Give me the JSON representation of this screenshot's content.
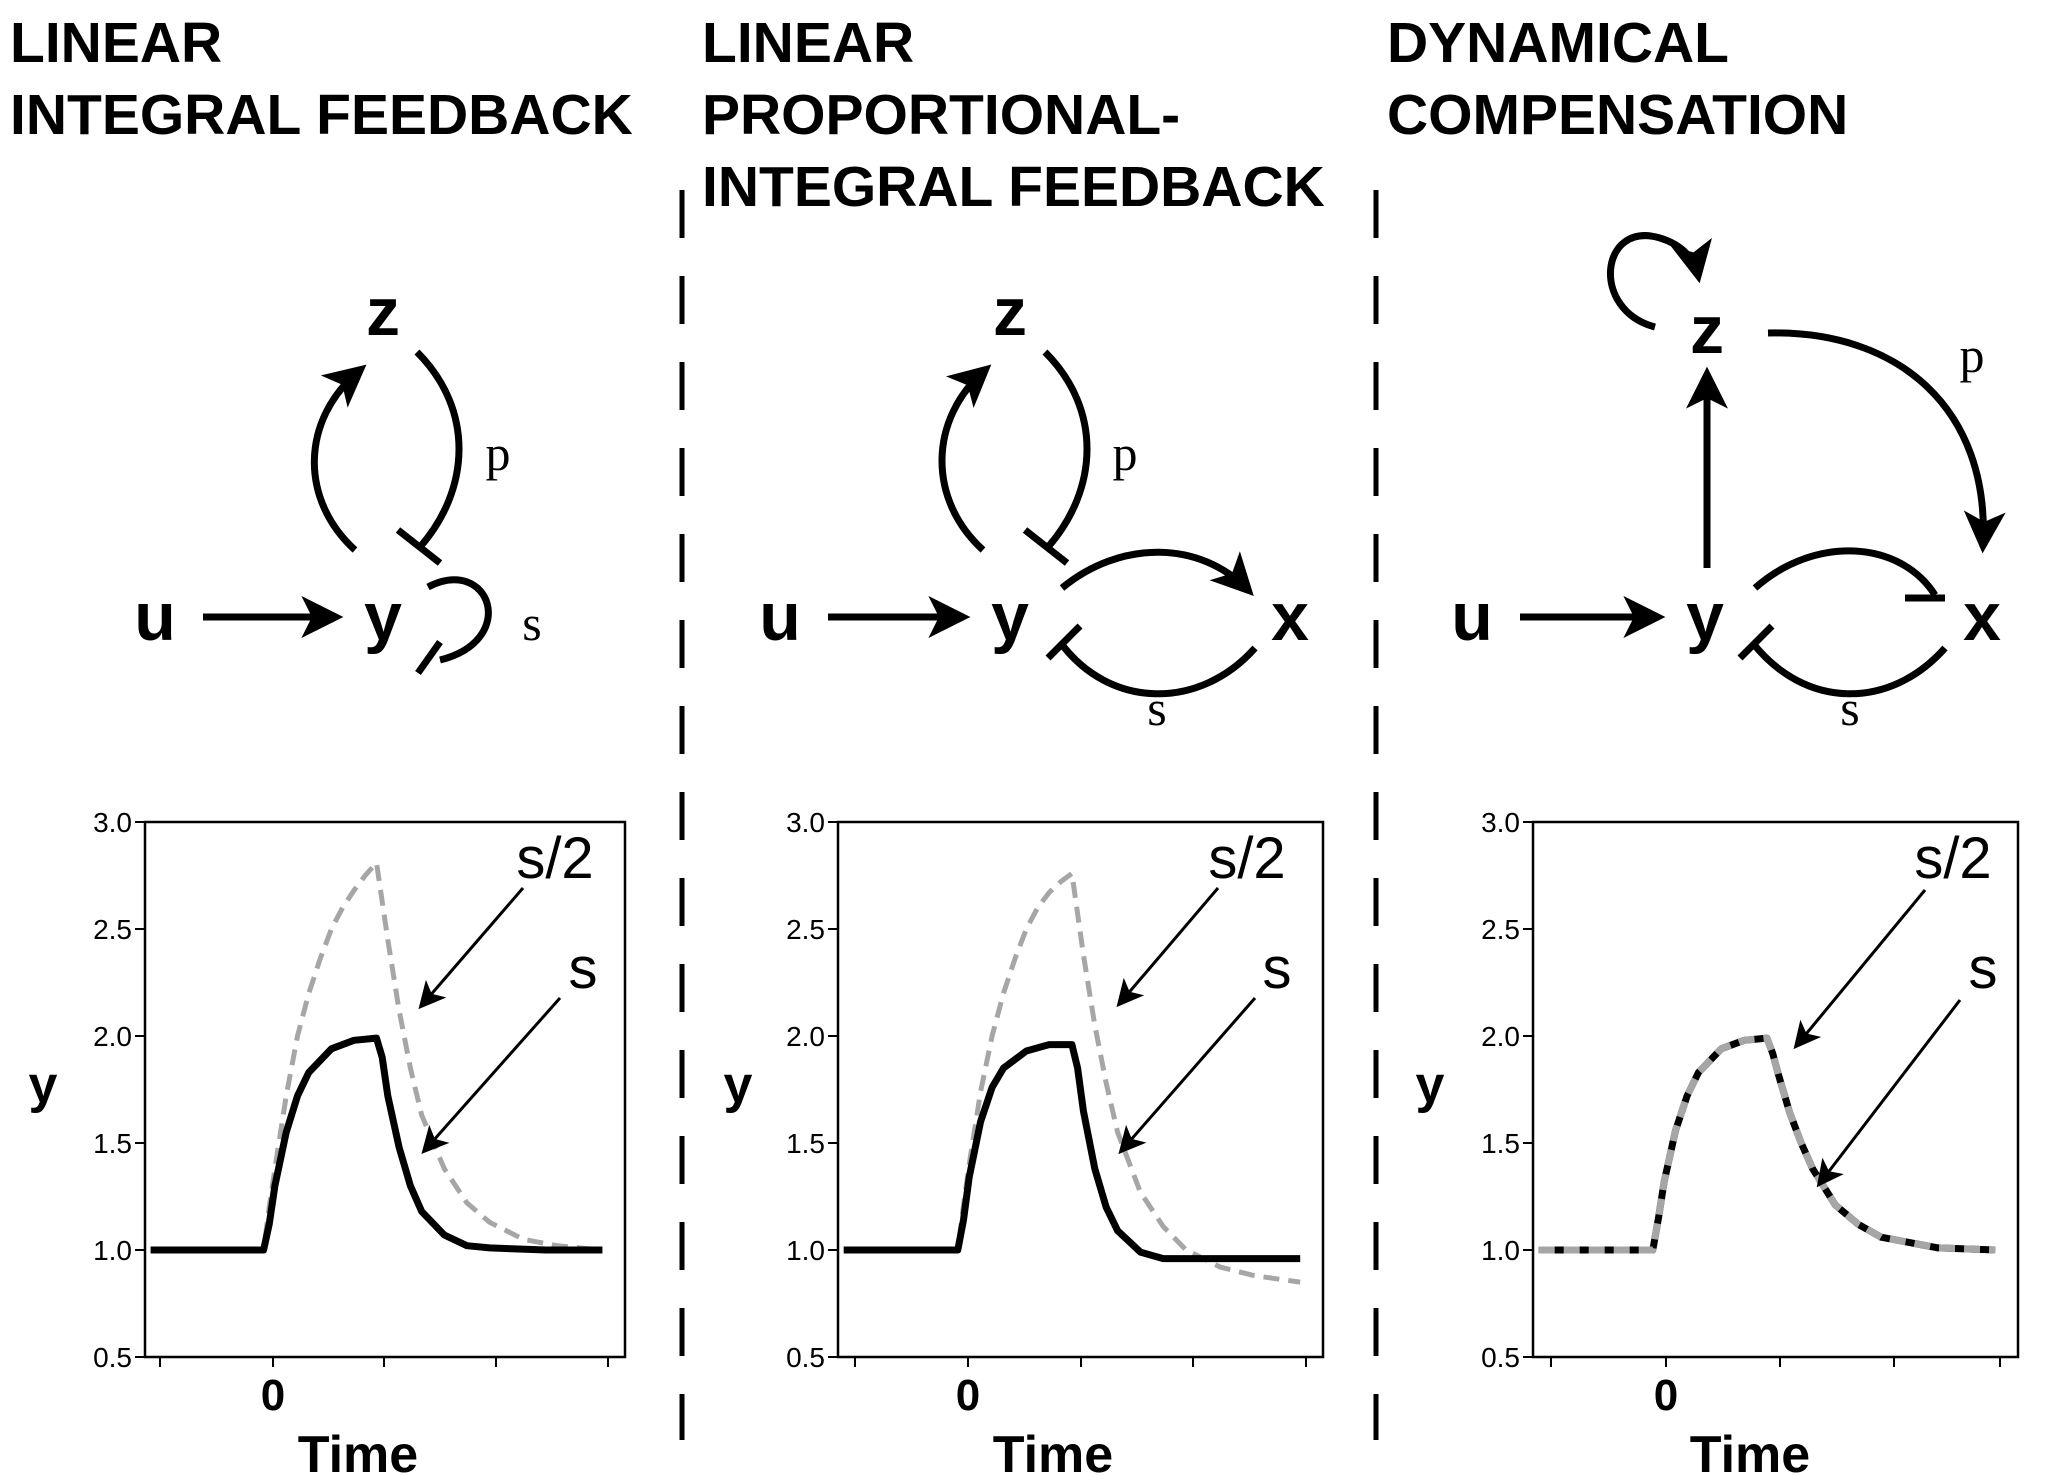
{
  "panels": [
    {
      "title_lines": [
        "LINEAR",
        "INTEGRAL FEEDBACK"
      ],
      "nodes": {
        "z": "z",
        "u": "u",
        "y": "y"
      },
      "edge_labels": {
        "p": "p",
        "s": "s"
      },
      "annotations": {
        "half": "s/2",
        "full": "s"
      }
    },
    {
      "title_lines": [
        "LINEAR",
        "PROPORTIONAL-",
        "INTEGRAL FEEDBACK"
      ],
      "nodes": {
        "z": "z",
        "u": "u",
        "y": "y",
        "x": "x"
      },
      "edge_labels": {
        "p": "p",
        "s": "s"
      },
      "annotations": {
        "half": "s/2",
        "full": "s"
      }
    },
    {
      "title_lines": [
        "DYNAMICAL",
        "COMPENSATION"
      ],
      "nodes": {
        "z": "z",
        "u": "u",
        "y": "y",
        "x": "x"
      },
      "edge_labels": {
        "p": "p",
        "s": "s"
      },
      "annotations": {
        "half": "s/2",
        "full": "s"
      }
    }
  ],
  "colors": {
    "solid": "#000000",
    "dashed": "#a6a6a6"
  },
  "chart_data": [
    {
      "type": "line",
      "xlabel": "Time",
      "ylabel": "y",
      "x_tick_labels": [
        "0"
      ],
      "y_tick_labels": [
        "0.5",
        "1.0",
        "1.5",
        "2.0",
        "2.5",
        "3.0"
      ],
      "ylim": [
        0.5,
        3.0
      ],
      "xlim": [
        -1.05,
        3.2
      ],
      "series": [
        {
          "name": "s",
          "style": "solid",
          "x": [
            -1.0,
            -0.5,
            0.0,
            0.05,
            0.1,
            0.2,
            0.3,
            0.4,
            0.6,
            0.8,
            1.0,
            1.05,
            1.1,
            1.2,
            1.3,
            1.4,
            1.6,
            1.8,
            2.0,
            2.5,
            3.0
          ],
          "values": [
            1.0,
            1.0,
            1.0,
            1.12,
            1.3,
            1.55,
            1.72,
            1.83,
            1.94,
            1.98,
            1.99,
            1.9,
            1.72,
            1.48,
            1.3,
            1.18,
            1.07,
            1.02,
            1.01,
            1.0,
            1.0
          ]
        },
        {
          "name": "s/2",
          "style": "dashed",
          "x": [
            -1.0,
            -0.5,
            0.0,
            0.05,
            0.1,
            0.2,
            0.3,
            0.4,
            0.5,
            0.6,
            0.7,
            0.8,
            0.9,
            1.0,
            1.1,
            1.2,
            1.3,
            1.4,
            1.6,
            1.8,
            2.0,
            2.3,
            2.6,
            3.0
          ],
          "values": [
            1.0,
            1.0,
            1.0,
            1.2,
            1.38,
            1.72,
            2.0,
            2.2,
            2.36,
            2.5,
            2.6,
            2.68,
            2.75,
            2.81,
            2.45,
            2.12,
            1.85,
            1.63,
            1.38,
            1.22,
            1.13,
            1.05,
            1.02,
            1.0
          ]
        }
      ]
    },
    {
      "type": "line",
      "xlabel": "Time",
      "ylabel": "y",
      "x_tick_labels": [
        "0"
      ],
      "y_tick_labels": [
        "0.5",
        "1.0",
        "1.5",
        "2.0",
        "2.5",
        "3.0"
      ],
      "ylim": [
        0.5,
        3.0
      ],
      "xlim": [
        -1.05,
        3.2
      ],
      "series": [
        {
          "name": "s",
          "style": "solid",
          "x": [
            -1.0,
            -0.5,
            0.0,
            0.05,
            0.1,
            0.2,
            0.3,
            0.4,
            0.6,
            0.8,
            1.0,
            1.05,
            1.1,
            1.2,
            1.3,
            1.4,
            1.6,
            1.8,
            2.0,
            2.5,
            3.0
          ],
          "values": [
            1.0,
            1.0,
            1.0,
            1.14,
            1.34,
            1.6,
            1.76,
            1.85,
            1.93,
            1.96,
            1.96,
            1.85,
            1.65,
            1.38,
            1.2,
            1.09,
            0.99,
            0.96,
            0.96,
            0.96,
            0.96
          ]
        },
        {
          "name": "s/2",
          "style": "dashed",
          "x": [
            -1.0,
            -0.5,
            0.0,
            0.05,
            0.1,
            0.2,
            0.3,
            0.4,
            0.5,
            0.6,
            0.7,
            0.8,
            0.9,
            1.0,
            1.1,
            1.2,
            1.3,
            1.4,
            1.6,
            1.8,
            2.0,
            2.3,
            2.6,
            3.0
          ],
          "values": [
            1.0,
            1.0,
            1.0,
            1.21,
            1.4,
            1.74,
            2.0,
            2.2,
            2.36,
            2.5,
            2.6,
            2.67,
            2.72,
            2.76,
            2.38,
            2.05,
            1.78,
            1.55,
            1.27,
            1.11,
            1.0,
            0.92,
            0.88,
            0.85
          ]
        }
      ]
    },
    {
      "type": "line",
      "xlabel": "Time",
      "ylabel": "y",
      "x_tick_labels": [
        "0"
      ],
      "y_tick_labels": [
        "0.5",
        "1.0",
        "1.5",
        "2.0",
        "2.5",
        "3.0"
      ],
      "ylim": [
        0.5,
        3.0
      ],
      "xlim": [
        -1.05,
        3.2
      ],
      "series": [
        {
          "name": "s",
          "style": "solid",
          "x": [
            -1.0,
            -0.5,
            0.0,
            0.05,
            0.1,
            0.2,
            0.3,
            0.4,
            0.6,
            0.8,
            1.0,
            1.05,
            1.1,
            1.2,
            1.3,
            1.4,
            1.6,
            1.8,
            2.0,
            2.5,
            3.0
          ],
          "values": [
            1.0,
            1.0,
            1.0,
            1.15,
            1.32,
            1.56,
            1.72,
            1.83,
            1.94,
            1.98,
            1.99,
            1.92,
            1.82,
            1.64,
            1.5,
            1.38,
            1.21,
            1.12,
            1.06,
            1.01,
            1.0
          ]
        },
        {
          "name": "s/2",
          "style": "dashed",
          "x": [
            -1.0,
            -0.5,
            0.0,
            0.05,
            0.1,
            0.2,
            0.3,
            0.4,
            0.6,
            0.8,
            1.0,
            1.05,
            1.1,
            1.2,
            1.3,
            1.4,
            1.6,
            1.8,
            2.0,
            2.5,
            3.0
          ],
          "values": [
            1.0,
            1.0,
            1.0,
            1.15,
            1.32,
            1.56,
            1.72,
            1.83,
            1.94,
            1.98,
            1.99,
            1.92,
            1.82,
            1.64,
            1.5,
            1.38,
            1.21,
            1.12,
            1.06,
            1.01,
            1.0
          ]
        }
      ]
    }
  ]
}
